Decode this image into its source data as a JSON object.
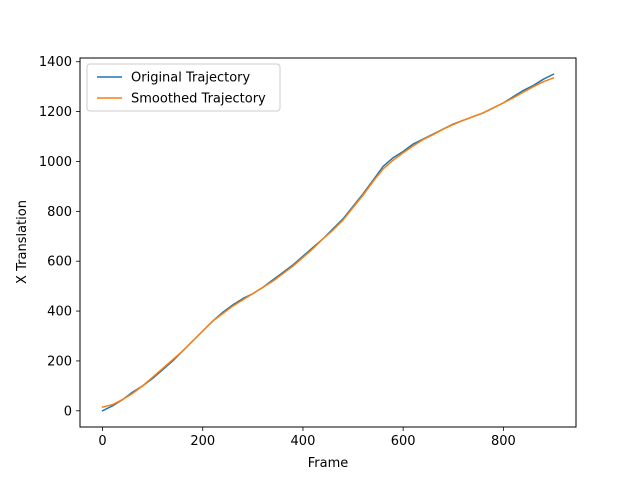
{
  "chart_data": {
    "type": "line",
    "xlabel": "Frame",
    "ylabel": "X Translation",
    "xlim": [
      -45,
      945
    ],
    "ylim": [
      -65,
      1415
    ],
    "xticks": [
      0,
      200,
      400,
      600,
      800
    ],
    "yticks": [
      0,
      200,
      400,
      600,
      800,
      1000,
      1200,
      1400
    ],
    "grid": false,
    "legend_position": "top-left",
    "series": [
      {
        "name": "Original Trajectory",
        "color": "#1f77b4",
        "x": [
          0,
          20,
          40,
          60,
          80,
          100,
          120,
          140,
          160,
          180,
          200,
          220,
          240,
          260,
          280,
          300,
          320,
          340,
          360,
          380,
          400,
          420,
          440,
          460,
          480,
          500,
          520,
          540,
          560,
          580,
          600,
          620,
          640,
          660,
          680,
          700,
          720,
          740,
          760,
          780,
          800,
          820,
          840,
          860,
          880,
          900
        ],
        "y": [
          0,
          20,
          45,
          75,
          100,
          130,
          165,
          200,
          240,
          280,
          320,
          360,
          395,
          425,
          450,
          470,
          495,
          525,
          555,
          585,
          620,
          655,
          690,
          730,
          770,
          820,
          870,
          925,
          980,
          1015,
          1040,
          1070,
          1090,
          1110,
          1130,
          1150,
          1165,
          1180,
          1195,
          1215,
          1235,
          1260,
          1285,
          1305,
          1330,
          1350
        ]
      },
      {
        "name": "Smoothed Trajectory",
        "color": "#ff7f0e",
        "x": [
          0,
          20,
          40,
          60,
          80,
          100,
          120,
          140,
          160,
          180,
          200,
          220,
          240,
          260,
          280,
          300,
          320,
          340,
          360,
          380,
          400,
          420,
          440,
          460,
          480,
          500,
          520,
          540,
          560,
          580,
          600,
          620,
          640,
          660,
          680,
          700,
          720,
          740,
          760,
          780,
          800,
          820,
          840,
          860,
          880,
          900
        ],
        "y": [
          15,
          25,
          45,
          70,
          100,
          135,
          170,
          205,
          240,
          280,
          320,
          360,
          390,
          420,
          445,
          470,
          495,
          520,
          550,
          580,
          615,
          650,
          690,
          725,
          765,
          815,
          865,
          920,
          970,
          1005,
          1035,
          1062,
          1088,
          1108,
          1130,
          1148,
          1165,
          1180,
          1195,
          1215,
          1235,
          1255,
          1278,
          1300,
          1320,
          1335
        ]
      }
    ]
  }
}
